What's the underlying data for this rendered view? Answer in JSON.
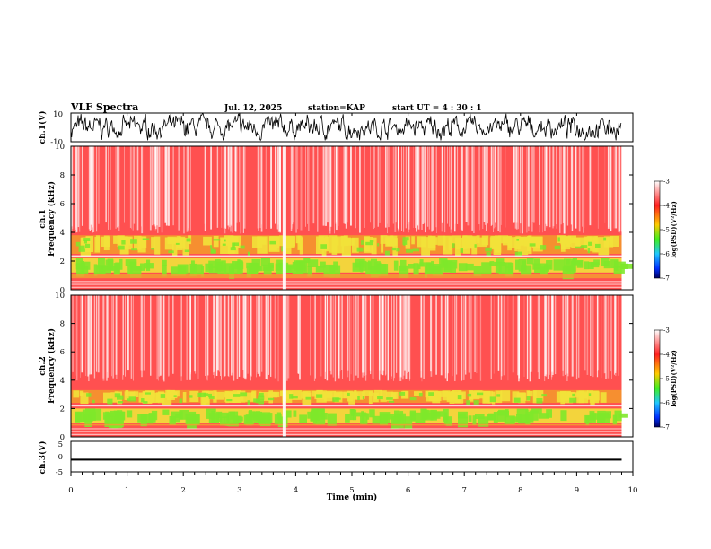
{
  "header": {
    "title": "VLF Spectra",
    "date": "Jul. 12, 2025",
    "station": "station=KAP",
    "start": "start UT =  4 : 30 : 1"
  },
  "colors": {
    "bg": "#ff5050",
    "band_yellow": "#f2e23a",
    "band_green": "#7ee82a",
    "line_white": "#ffffff",
    "trace": "#000000"
  },
  "chart_data": [
    {
      "id": "ch1-waveform",
      "type": "line",
      "ylabel": "ch.1(V)",
      "ylim": [
        -10,
        10
      ],
      "yticks": [
        "10",
        "-10"
      ],
      "description_of_signal": "noisy broadband trace spanning most of range"
    },
    {
      "id": "ch1-spectrogram",
      "type": "heatmap",
      "ylabel_line1": "ch.1",
      "ylabel_line2": "Frequency (kHz)",
      "ylim": [
        0,
        10
      ],
      "yticks": [
        "0",
        "2",
        "4",
        "6",
        "8",
        "10"
      ],
      "xlim": [
        0,
        10
      ],
      "bands_khz": {
        "green_low": [
          1.2,
          2.2
        ],
        "yellow_high": [
          2.5,
          3.8
        ],
        "red_above": 4
      },
      "gap_min": 3.8
    },
    {
      "id": "ch2-spectrogram",
      "type": "heatmap",
      "ylabel_line1": "ch.2",
      "ylabel_line2": "Frequency (kHz)",
      "ylim": [
        0,
        10
      ],
      "yticks": [
        "0",
        "2",
        "4",
        "6",
        "8",
        "10"
      ],
      "xlim": [
        0,
        10
      ],
      "bands_khz": {
        "green_low": [
          1.0,
          2.0
        ],
        "yellow_high": [
          2.4,
          3.3
        ],
        "red_above": 3.5
      },
      "gap_min": 3.8
    },
    {
      "id": "ch3-waveform",
      "type": "line",
      "ylabel": "ch.3(V)",
      "ylim": [
        -5,
        5
      ],
      "yticks": [
        "5",
        "0",
        "-5"
      ],
      "level_v": -1,
      "xlabel": "Time (min)",
      "xticks": [
        "0",
        "1",
        "2",
        "3",
        "4",
        "5",
        "6",
        "7",
        "8",
        "9",
        "10"
      ],
      "xlim": [
        0,
        10
      ],
      "data_end_min": 9.8
    },
    {
      "id": "colorbar",
      "type": "colorbar",
      "label": "log(PSD)(V²/Hz)",
      "range": [
        -7,
        -3
      ],
      "ticks": [
        "-3",
        "-4",
        "-5",
        "-6",
        "-7"
      ]
    }
  ]
}
